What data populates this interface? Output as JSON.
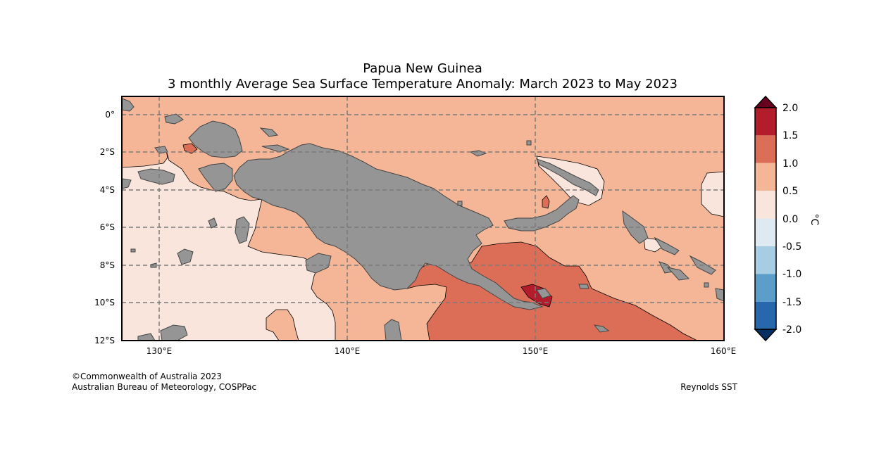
{
  "title": {
    "line1": "Papua New Guinea",
    "line2": "3 monthly Average Sea Surface Temperature Anomaly: March 2023 to May 2023"
  },
  "map": {
    "lon_range": [
      128,
      160
    ],
    "lat_range": [
      -12,
      1
    ],
    "lon_ticks": [
      {
        "value": 130,
        "label": "130°E"
      },
      {
        "value": 140,
        "label": "140°E"
      },
      {
        "value": 150,
        "label": "150°E"
      },
      {
        "value": 160,
        "label": "160°E"
      }
    ],
    "lat_ticks": [
      {
        "value": 0,
        "label": "0°"
      },
      {
        "value": -2,
        "label": "2°S"
      },
      {
        "value": -4,
        "label": "4°S"
      },
      {
        "value": -6,
        "label": "6°S"
      },
      {
        "value": -8,
        "label": "8°S"
      },
      {
        "value": -10,
        "label": "10°S"
      },
      {
        "value": -12,
        "label": "12°S"
      }
    ],
    "gridlines": "dashed",
    "land_color": "#959595",
    "dominant_anomaly_band": "0.5 to 1.0"
  },
  "colorbar": {
    "unit": "°C",
    "levels": [
      "2.0",
      "1.5",
      "1.0",
      "0.5",
      "0.0",
      "-0.5",
      "-1.0",
      "-1.5",
      "-2.0"
    ],
    "colors_top_to_bottom": [
      "#b31c2b",
      "#dc6e57",
      "#f4b697",
      "#f9e5db",
      "#dfe9f1",
      "#a7cde3",
      "#5a9ec9",
      "#2767ac"
    ],
    "extend_max_color": "#67001f",
    "extend_min_color": "#053061"
  },
  "colors": {
    "c_0_05": "#f9e5db",
    "c_05_10": "#f4b697",
    "c_10_15": "#dc6e57",
    "c_15_20": "#b31c2b",
    "land": "#959595"
  },
  "footer": {
    "copyright": "©Commonwealth of Australia 2023",
    "agency": "Australian Bureau of Meteorology, COSPPac",
    "source": "Reynolds SST"
  }
}
